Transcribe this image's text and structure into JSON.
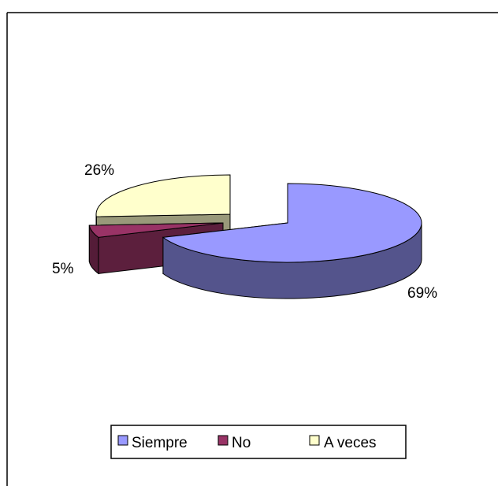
{
  "chart_data": {
    "type": "pie",
    "style": "3d-exploded",
    "categories": [
      "Siempre",
      "No",
      "A veces"
    ],
    "values": [
      69,
      5,
      26
    ],
    "data_labels": [
      "69%",
      "5%",
      "26%"
    ],
    "colors": {
      "Siempre": "#9999ff",
      "No": "#993366",
      "A veces": "#ffffcc"
    },
    "legend_placement": "bottom"
  }
}
